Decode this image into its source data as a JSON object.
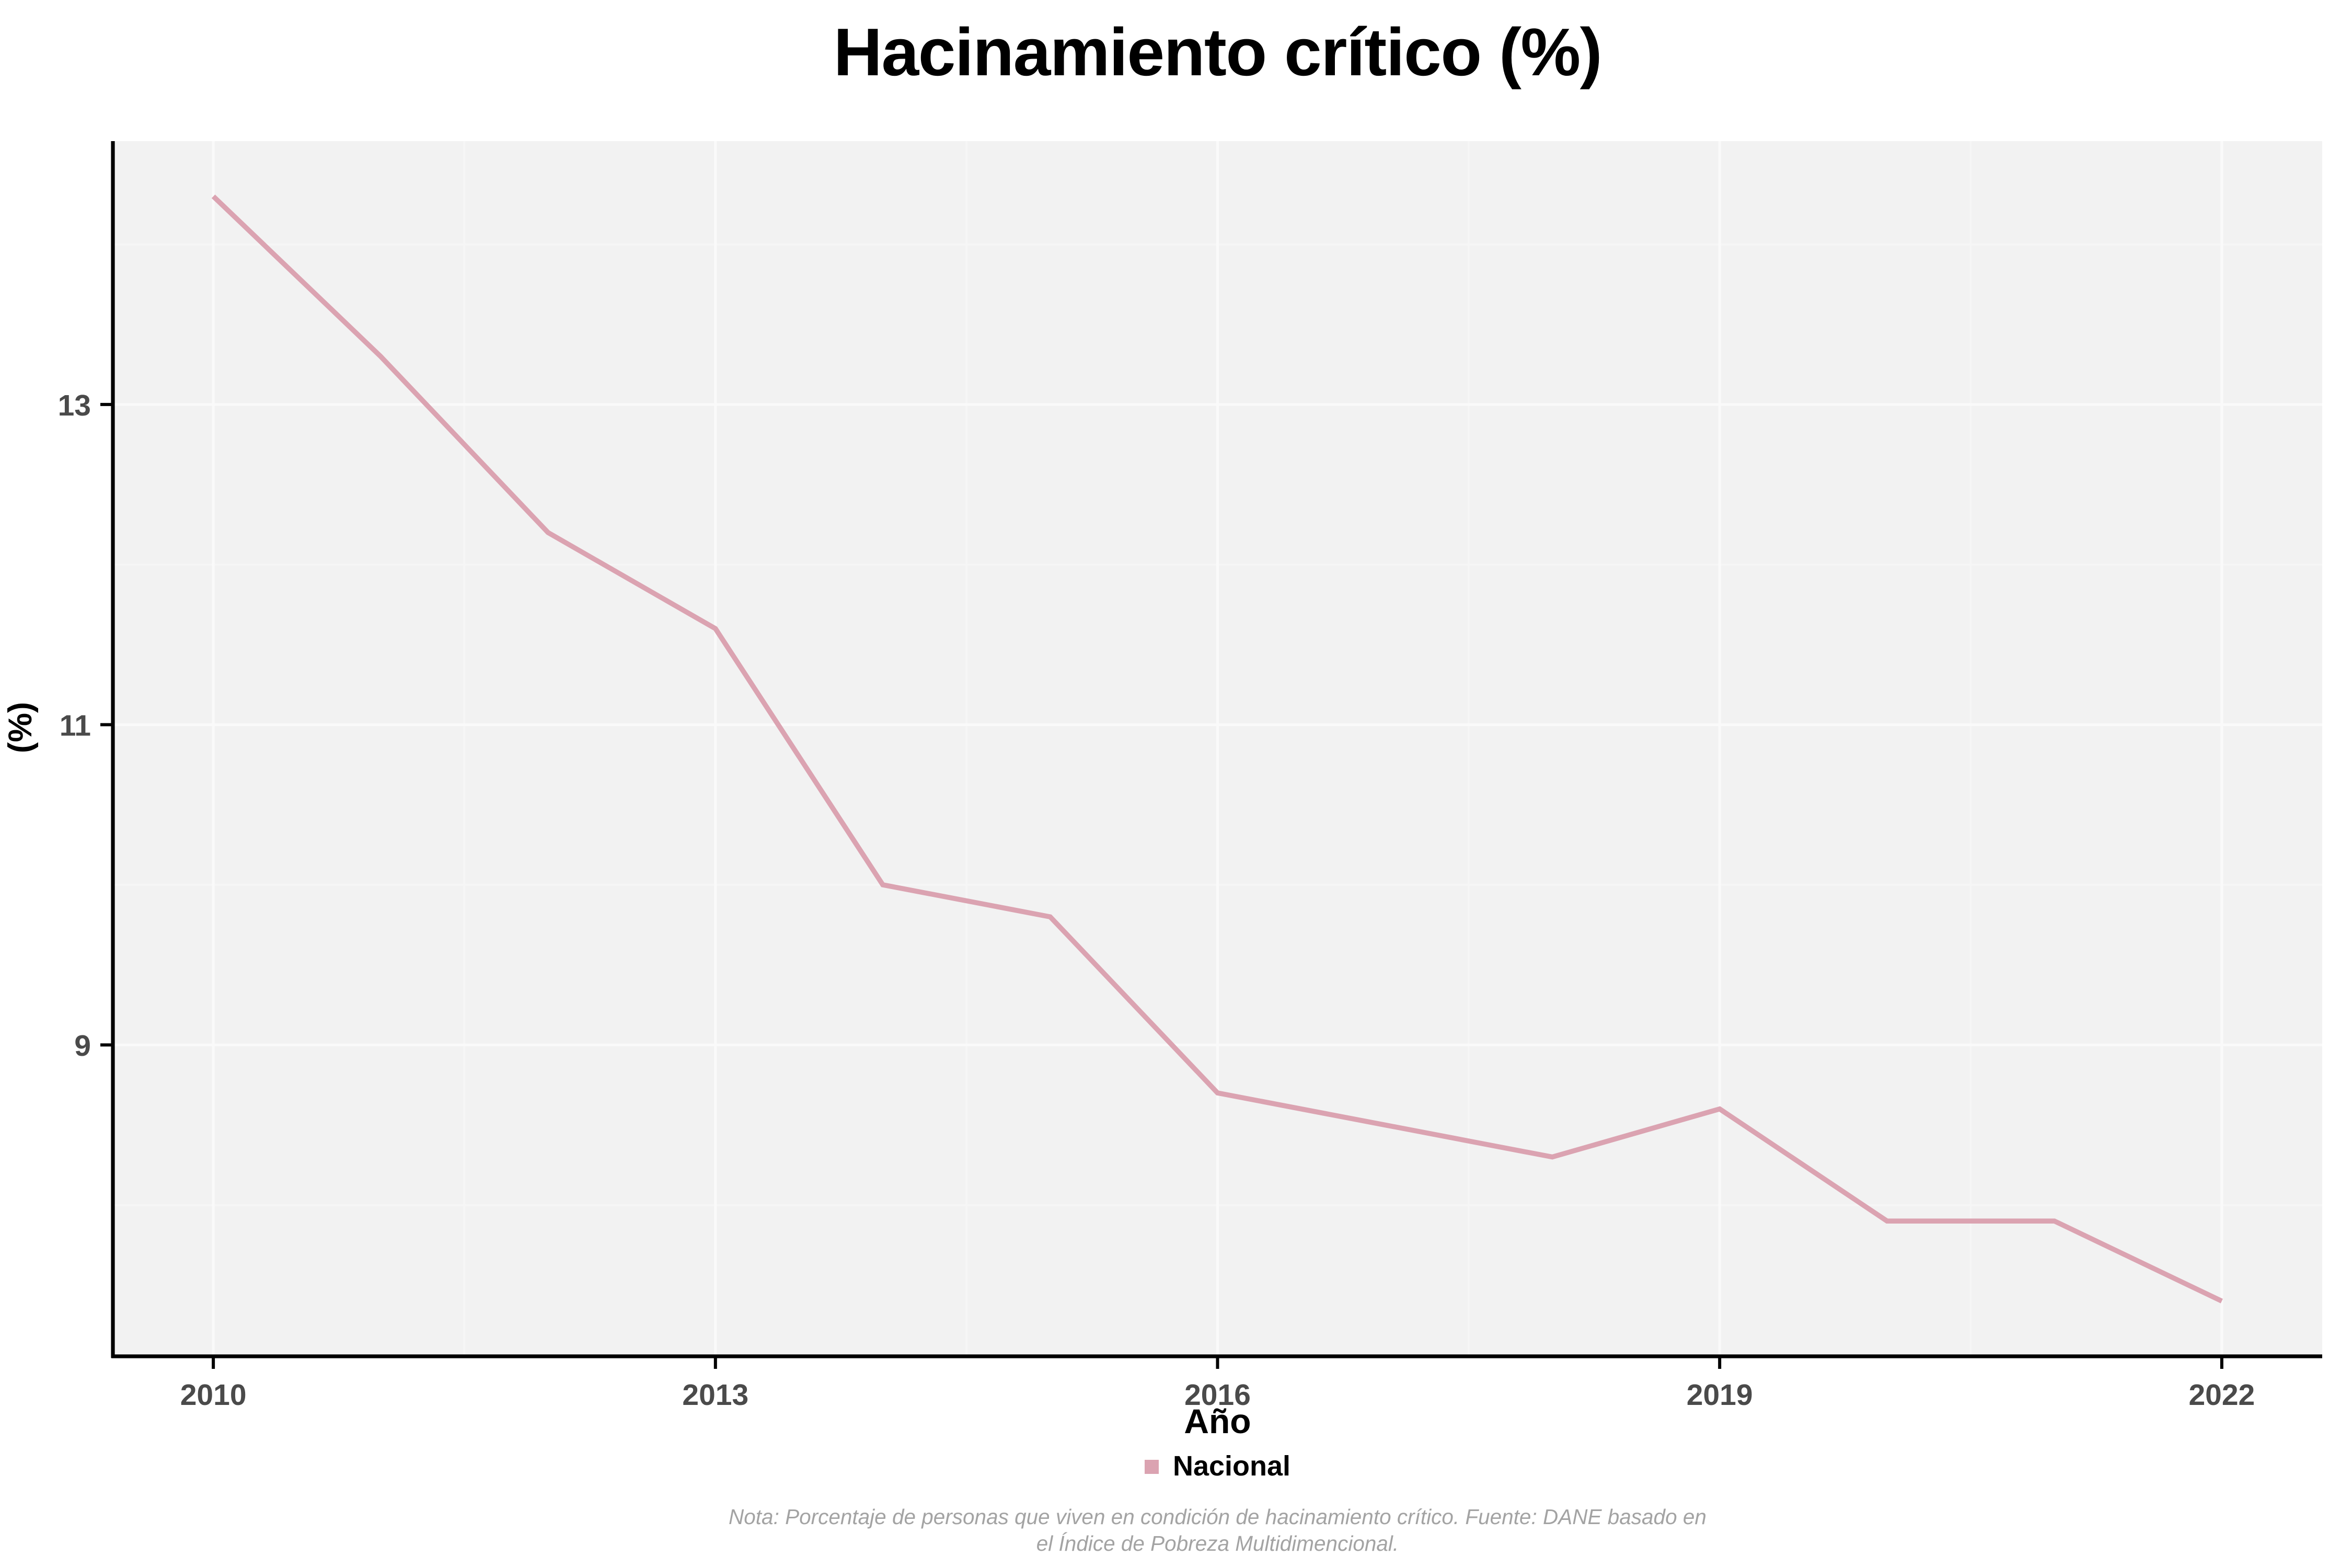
{
  "title": "Hacinamiento crítico (%)",
  "x_axis_label": "Año",
  "y_axis_label": "(%)",
  "legend": {
    "label": "Nacional",
    "color": "#dba3b1"
  },
  "note_line1": "Nota: Porcentaje de personas que viven en condición de hacinamiento crítico. Fuente: DANE basado en",
  "note_line2": "el Índice de Pobreza Multidimencional.",
  "colors": {
    "line": "#dba3b1",
    "panel_bg": "#f2f2f2",
    "grid_major": "#fafafa",
    "grid_minor": "#f6f6f6",
    "axis": "#000000",
    "tick_label": "#4a4a4a",
    "note": "#a3a3a3"
  },
  "chart_data": {
    "type": "line",
    "title": "Hacinamiento crítico (%)",
    "xlabel": "Año",
    "ylabel": "(%)",
    "grid": true,
    "legend_position": "bottom",
    "x_ticks": [
      2010,
      2013,
      2016,
      2019,
      2022
    ],
    "y_ticks": [
      9,
      11,
      13
    ],
    "x_minor_ticks": [
      2011.5,
      2014.5,
      2017.5,
      2020.5
    ],
    "y_minor_ticks": [
      8,
      10,
      12,
      14
    ],
    "xlim": [
      2009.4,
      2022.6
    ],
    "ylim": [
      7.055,
      14.645
    ],
    "series": [
      {
        "name": "Nacional",
        "color": "#dba3b1",
        "x": [
          2010,
          2011,
          2012,
          2013,
          2014,
          2015,
          2016,
          2017,
          2018,
          2019,
          2020,
          2021,
          2022
        ],
        "values": [
          14.3,
          13.3,
          12.2,
          11.6,
          10.0,
          9.8,
          8.7,
          8.5,
          8.3,
          8.6,
          7.9,
          7.9,
          7.4
        ]
      }
    ]
  }
}
